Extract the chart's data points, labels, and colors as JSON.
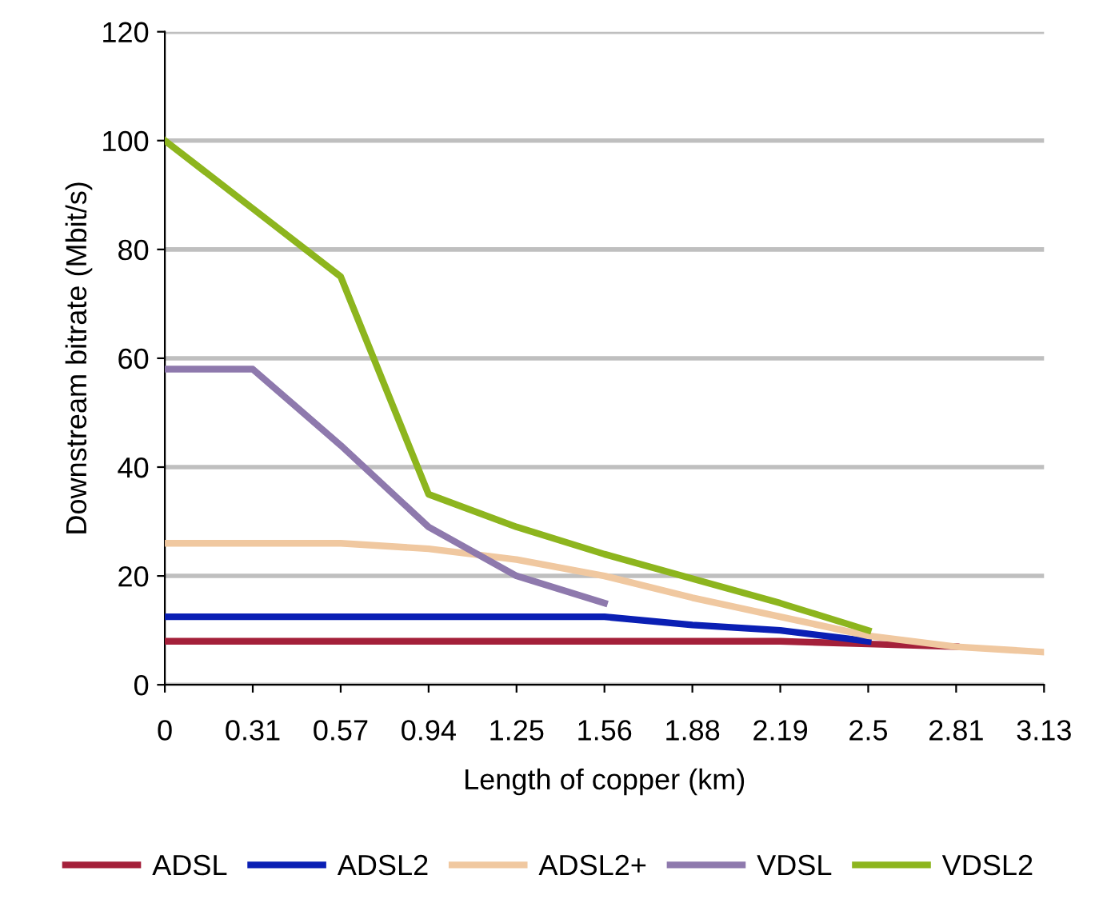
{
  "chart_data": {
    "type": "line",
    "xlabel": "Length of copper (km)",
    "ylabel": "Downstream bitrate (Mbit/s)",
    "categories": [
      "0",
      "0.31",
      "0.57",
      "0.94",
      "1.25",
      "1.56",
      "1.88",
      "2.19",
      "2.5",
      "2.81",
      "3.13"
    ],
    "series": [
      {
        "name": "ADSL",
        "color": "#a4203a",
        "values": [
          8,
          8,
          8,
          8,
          8,
          8,
          8,
          8,
          7.5,
          7,
          null
        ]
      },
      {
        "name": "ADSL2",
        "color": "#0a1fb4",
        "values": [
          12.5,
          12.5,
          12.5,
          12.5,
          12.5,
          12.5,
          11,
          10,
          8,
          null,
          null
        ]
      },
      {
        "name": "ADSL2+",
        "color": "#f0c8a0",
        "values": [
          26,
          26,
          26,
          25,
          23,
          20,
          16,
          12.5,
          9,
          7,
          6
        ]
      },
      {
        "name": "VDSL",
        "color": "#8e79ad",
        "values": [
          58,
          58,
          44,
          29,
          20,
          15,
          null,
          null,
          null,
          null,
          null
        ]
      },
      {
        "name": "VDSL2",
        "color": "#8db51e",
        "values": [
          100,
          87.5,
          75,
          35,
          29,
          24,
          19.5,
          15,
          10,
          null,
          null
        ]
      }
    ],
    "ylim": [
      0,
      120
    ],
    "yticks": [
      0,
      20,
      40,
      60,
      80,
      100,
      120
    ],
    "grid": "y",
    "legend": "bottom",
    "marker": "none",
    "line_style": "solid"
  }
}
